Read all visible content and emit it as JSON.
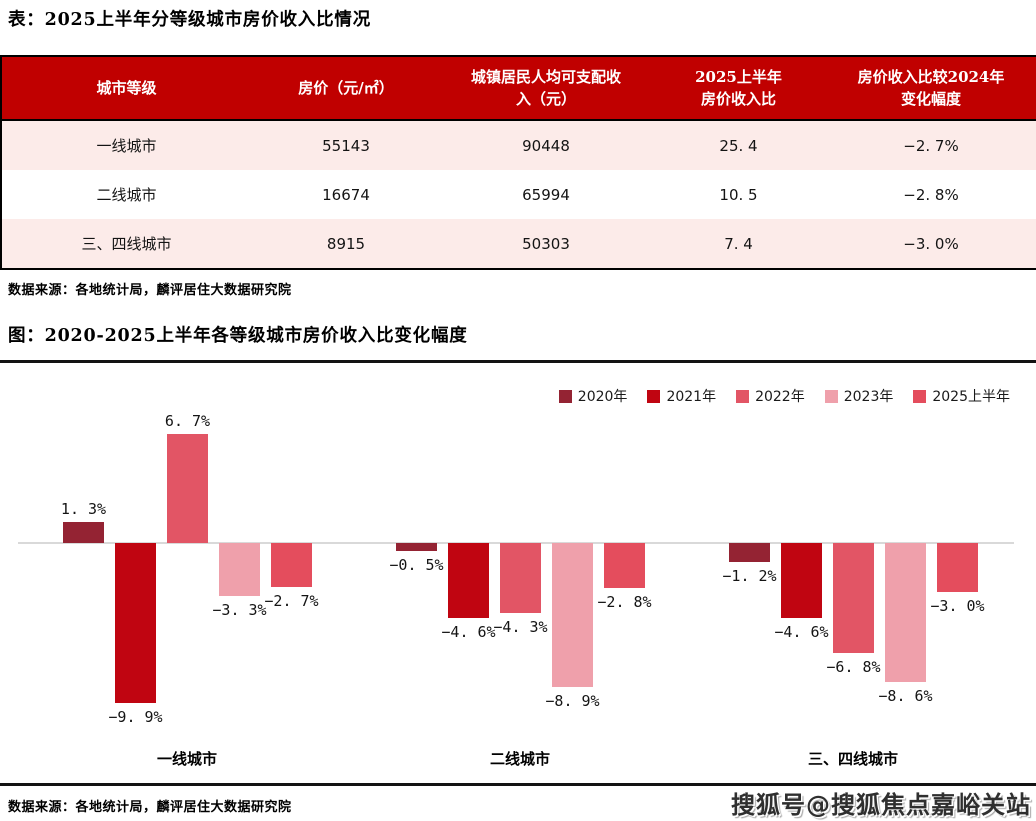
{
  "colors": {
    "header_red": "#c00000",
    "row_pink": "#fcebe9",
    "row_white": "#ffffff",
    "divider_black": "#131313",
    "baseline_gray": "#d9d9d9",
    "text_black": "#1a1a1a",
    "watermark_gray": "#2f2f2f"
  },
  "table_section": {
    "title": "表：2025上半年分等级城市房价收入比情况",
    "columns": [
      {
        "l1": "城市等级",
        "l2": ""
      },
      {
        "l1": "房价（元/㎡）",
        "l2": ""
      },
      {
        "l1": "城镇居民人均可支配收",
        "l2": "入（元）"
      },
      {
        "l1": "2025上半年",
        "l2": "房价收入比"
      },
      {
        "l1": "房价收入比较2024年",
        "l2": "变化幅度"
      }
    ],
    "rows": [
      {
        "cells": [
          "一线城市",
          "55143",
          "90448",
          "25. 4",
          "−2. 7%"
        ]
      },
      {
        "cells": [
          "二线城市",
          "16674",
          "65994",
          "10. 5",
          "−2. 8%"
        ]
      },
      {
        "cells": [
          "三、四线城市",
          "8915",
          "50303",
          "7. 4",
          "−3. 0%"
        ]
      }
    ],
    "source": "数据来源：各地统计局，麟评居住大数据研究院"
  },
  "chart_section": {
    "title": "图：2020-2025上半年各等级城市房价收入比变化幅度",
    "source": "数据来源：各地统计局，麟评居住大数据研究院",
    "watermark": "搜狐号@搜狐焦点嘉峪关站"
  },
  "chart_data": {
    "type": "bar",
    "title": "图：2020-2025上半年各等级城市房价收入比变化幅度",
    "categories": [
      "一线城市",
      "二线城市",
      "三、四线城市"
    ],
    "series": [
      {
        "name": "2020年",
        "color": "#942333",
        "values": [
          1.3,
          -0.5,
          -1.2
        ],
        "labels": [
          "1. 3%",
          "−0. 5%",
          "−1. 2%"
        ]
      },
      {
        "name": "2021年",
        "color": "#c00511",
        "values": [
          -9.9,
          -4.6,
          -4.6
        ],
        "labels": [
          "−9. 9%",
          "−4. 6%",
          "−4. 6%"
        ]
      },
      {
        "name": "2022年",
        "color": "#e25565",
        "values": [
          6.7,
          -4.3,
          -6.8
        ],
        "labels": [
          "6. 7%",
          "−4. 3%",
          "−6. 8%"
        ]
      },
      {
        "name": "2023年",
        "color": "#efa0ab",
        "values": [
          -3.3,
          -8.9,
          -8.6
        ],
        "labels": [
          "−3. 3%",
          "−8. 9%",
          "−8. 6%"
        ]
      },
      {
        "name": "2025上半年",
        "color": "#e44d5d",
        "values": [
          -2.7,
          -2.8,
          -3.0
        ],
        "labels": [
          "−2. 7%",
          "−2. 8%",
          "−3. 0%"
        ]
      }
    ],
    "unit": "%",
    "ylim": [
      -10.5,
      7.5
    ],
    "grid": false,
    "legend_position": "top-right",
    "value_labels": true,
    "baseline": 0
  }
}
